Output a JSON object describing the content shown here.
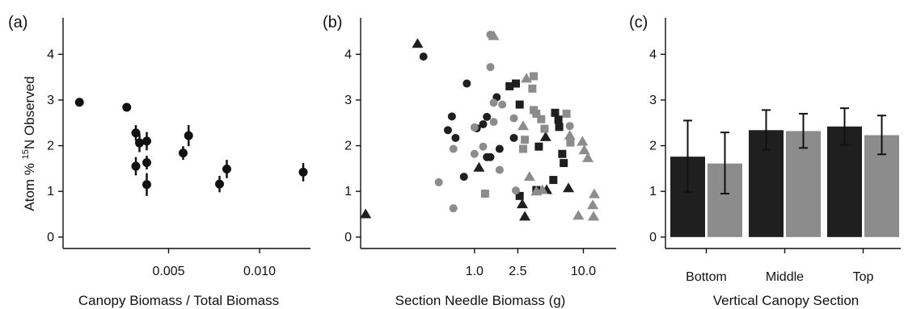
{
  "colors": {
    "dark": "#1f1f1f",
    "gray": "#8c8c8c",
    "ink": "#111111"
  },
  "ylabel_parts": {
    "pre": "Atom % ",
    "sup": "15",
    "post": "N Observed"
  },
  "chart_data": [
    {
      "type": "scatter",
      "panel_label": "(a)",
      "xlabel": "Canopy Biomass / Total Biomass",
      "ylabel": "Atom % 15N Observed",
      "xlim": [
        -0.0008,
        0.0128
      ],
      "ylim": [
        -0.25,
        4.8
      ],
      "x_ticks": [
        {
          "value": 0.005,
          "label": "0.005"
        },
        {
          "value": 0.01,
          "label": "0.010"
        }
      ],
      "y_ticks": [
        {
          "value": 0,
          "label": "0"
        },
        {
          "value": 1,
          "label": "1"
        },
        {
          "value": 2,
          "label": "2"
        },
        {
          "value": 3,
          "label": "3"
        },
        {
          "value": 4,
          "label": "4"
        }
      ],
      "points": [
        {
          "x": 0.0001,
          "y": 2.95,
          "err": 0
        },
        {
          "x": 0.0027,
          "y": 2.84,
          "err": 0
        },
        {
          "x": 0.0032,
          "y": 2.28,
          "err": 0.17
        },
        {
          "x": 0.0034,
          "y": 2.06,
          "err": 0.2
        },
        {
          "x": 0.0032,
          "y": 1.55,
          "err": 0.2
        },
        {
          "x": 0.0038,
          "y": 2.1,
          "err": 0.2
        },
        {
          "x": 0.0038,
          "y": 1.63,
          "err": 0.15
        },
        {
          "x": 0.0038,
          "y": 1.15,
          "err": 0.25
        },
        {
          "x": 0.0058,
          "y": 1.84,
          "err": 0.15
        },
        {
          "x": 0.0061,
          "y": 2.22,
          "err": 0.23
        },
        {
          "x": 0.0078,
          "y": 1.16,
          "err": 0.18
        },
        {
          "x": 0.0082,
          "y": 1.49,
          "err": 0.2
        },
        {
          "x": 0.0124,
          "y": 1.42,
          "err": 0.2
        }
      ]
    },
    {
      "type": "scatter",
      "panel_label": "(b)",
      "xlabel": "Section Needle Biomass (g)",
      "x_scale": "log",
      "xlim": [
        0.09,
        20
      ],
      "ylim": [
        -0.25,
        4.8
      ],
      "x_ticks": [
        {
          "value": 1.0,
          "label": "1.0"
        },
        {
          "value": 2.5,
          "label": "2.5"
        },
        {
          "value": 10.0,
          "label": "10.0"
        }
      ],
      "y_ticks": [
        {
          "value": 0,
          "label": "0"
        },
        {
          "value": 1,
          "label": "1"
        },
        {
          "value": 2,
          "label": "2"
        },
        {
          "value": 3,
          "label": "3"
        },
        {
          "value": 4,
          "label": "4"
        }
      ],
      "points": [
        {
          "x": 0.3,
          "y": 4.23,
          "shape": "triangle",
          "color": "dark"
        },
        {
          "x": 0.34,
          "y": 3.95,
          "shape": "circle",
          "color": "dark"
        },
        {
          "x": 0.1,
          "y": 0.5,
          "shape": "triangle",
          "color": "dark"
        },
        {
          "x": 0.85,
          "y": 3.36,
          "shape": "circle",
          "color": "dark"
        },
        {
          "x": 0.62,
          "y": 2.64,
          "shape": "circle",
          "color": "dark"
        },
        {
          "x": 0.57,
          "y": 2.34,
          "shape": "circle",
          "color": "dark"
        },
        {
          "x": 0.67,
          "y": 2.17,
          "shape": "circle",
          "color": "dark"
        },
        {
          "x": 0.8,
          "y": 1.32,
          "shape": "circle",
          "color": "dark"
        },
        {
          "x": 1.05,
          "y": 2.38,
          "shape": "circle",
          "color": "dark"
        },
        {
          "x": 1.2,
          "y": 2.47,
          "shape": "circle",
          "color": "dark"
        },
        {
          "x": 1.3,
          "y": 2.63,
          "shape": "circle",
          "color": "dark"
        },
        {
          "x": 1.3,
          "y": 1.75,
          "shape": "circle",
          "color": "dark"
        },
        {
          "x": 1.1,
          "y": 1.52,
          "shape": "triangle",
          "color": "dark"
        },
        {
          "x": 1.4,
          "y": 1.75,
          "shape": "circle",
          "color": "dark"
        },
        {
          "x": 1.6,
          "y": 3.06,
          "shape": "circle",
          "color": "dark"
        },
        {
          "x": 1.7,
          "y": 1.93,
          "shape": "circle",
          "color": "dark"
        },
        {
          "x": 2.3,
          "y": 2.17,
          "shape": "circle",
          "color": "dark"
        },
        {
          "x": 2.1,
          "y": 3.3,
          "shape": "square",
          "color": "dark"
        },
        {
          "x": 2.4,
          "y": 3.36,
          "shape": "square",
          "color": "dark"
        },
        {
          "x": 2.6,
          "y": 2.9,
          "shape": "square",
          "color": "dark"
        },
        {
          "x": 2.6,
          "y": 0.9,
          "shape": "square",
          "color": "dark"
        },
        {
          "x": 2.75,
          "y": 0.72,
          "shape": "triangle",
          "color": "dark"
        },
        {
          "x": 2.9,
          "y": 0.45,
          "shape": "triangle",
          "color": "dark"
        },
        {
          "x": 3.7,
          "y": 1.03,
          "shape": "square",
          "color": "dark"
        },
        {
          "x": 3.9,
          "y": 1.98,
          "shape": "square",
          "color": "dark"
        },
        {
          "x": 4.5,
          "y": 2.19,
          "shape": "triangle",
          "color": "dark"
        },
        {
          "x": 4.6,
          "y": 1.03,
          "shape": "triangle",
          "color": "dark"
        },
        {
          "x": 5.5,
          "y": 2.72,
          "shape": "square",
          "color": "dark"
        },
        {
          "x": 5.9,
          "y": 2.57,
          "shape": "square",
          "color": "dark"
        },
        {
          "x": 6.0,
          "y": 2.41,
          "shape": "square",
          "color": "dark"
        },
        {
          "x": 6.4,
          "y": 1.82,
          "shape": "square",
          "color": "dark"
        },
        {
          "x": 6.6,
          "y": 1.62,
          "shape": "square",
          "color": "dark"
        },
        {
          "x": 5.3,
          "y": 1.25,
          "shape": "square",
          "color": "dark"
        },
        {
          "x": 7.3,
          "y": 1.07,
          "shape": "triangle",
          "color": "dark"
        },
        {
          "x": 1.4,
          "y": 4.43,
          "shape": "circle",
          "color": "gray"
        },
        {
          "x": 1.5,
          "y": 4.4,
          "shape": "triangle",
          "color": "gray"
        },
        {
          "x": 1.4,
          "y": 3.72,
          "shape": "circle",
          "color": "gray"
        },
        {
          "x": 0.47,
          "y": 1.2,
          "shape": "circle",
          "color": "gray"
        },
        {
          "x": 0.64,
          "y": 1.93,
          "shape": "circle",
          "color": "gray"
        },
        {
          "x": 0.64,
          "y": 0.63,
          "shape": "circle",
          "color": "gray"
        },
        {
          "x": 1.0,
          "y": 2.4,
          "shape": "circle",
          "color": "gray"
        },
        {
          "x": 1.0,
          "y": 1.82,
          "shape": "circle",
          "color": "gray"
        },
        {
          "x": 1.2,
          "y": 1.98,
          "shape": "circle",
          "color": "gray"
        },
        {
          "x": 1.25,
          "y": 0.95,
          "shape": "square",
          "color": "gray"
        },
        {
          "x": 1.5,
          "y": 2.94,
          "shape": "circle",
          "color": "gray"
        },
        {
          "x": 1.5,
          "y": 2.52,
          "shape": "circle",
          "color": "gray"
        },
        {
          "x": 1.7,
          "y": 1.47,
          "shape": "circle",
          "color": "gray"
        },
        {
          "x": 1.8,
          "y": 2.9,
          "shape": "circle",
          "color": "gray"
        },
        {
          "x": 2.4,
          "y": 1.02,
          "shape": "circle",
          "color": "gray"
        },
        {
          "x": 2.3,
          "y": 2.6,
          "shape": "circle",
          "color": "gray"
        },
        {
          "x": 3.0,
          "y": 3.47,
          "shape": "triangle",
          "color": "gray"
        },
        {
          "x": 3.5,
          "y": 3.52,
          "shape": "square",
          "color": "gray"
        },
        {
          "x": 3.4,
          "y": 3.25,
          "shape": "square",
          "color": "gray"
        },
        {
          "x": 3.5,
          "y": 2.78,
          "shape": "square",
          "color": "gray"
        },
        {
          "x": 3.7,
          "y": 2.7,
          "shape": "square",
          "color": "gray"
        },
        {
          "x": 2.8,
          "y": 2.43,
          "shape": "triangle",
          "color": "gray"
        },
        {
          "x": 2.9,
          "y": 2.13,
          "shape": "square",
          "color": "gray"
        },
        {
          "x": 2.8,
          "y": 1.93,
          "shape": "square",
          "color": "gray"
        },
        {
          "x": 3.2,
          "y": 1.32,
          "shape": "triangle",
          "color": "gray"
        },
        {
          "x": 3.7,
          "y": 1.0,
          "shape": "triangle",
          "color": "gray"
        },
        {
          "x": 4.2,
          "y": 1.03,
          "shape": "triangle",
          "color": "gray"
        },
        {
          "x": 4.4,
          "y": 2.37,
          "shape": "square",
          "color": "gray"
        },
        {
          "x": 4.1,
          "y": 2.58,
          "shape": "square",
          "color": "gray"
        },
        {
          "x": 7.0,
          "y": 2.7,
          "shape": "square",
          "color": "gray"
        },
        {
          "x": 7.5,
          "y": 2.22,
          "shape": "triangle",
          "color": "gray"
        },
        {
          "x": 7.6,
          "y": 2.07,
          "shape": "square",
          "color": "gray"
        },
        {
          "x": 7.5,
          "y": 2.43,
          "shape": "circle",
          "color": "gray"
        },
        {
          "x": 9.8,
          "y": 2.09,
          "shape": "triangle",
          "color": "gray"
        },
        {
          "x": 10.2,
          "y": 1.9,
          "shape": "triangle",
          "color": "gray"
        },
        {
          "x": 11.0,
          "y": 1.73,
          "shape": "triangle",
          "color": "gray"
        },
        {
          "x": 9.0,
          "y": 0.47,
          "shape": "triangle",
          "color": "gray"
        },
        {
          "x": 12.6,
          "y": 0.94,
          "shape": "triangle",
          "color": "gray"
        },
        {
          "x": 12.2,
          "y": 0.7,
          "shape": "triangle",
          "color": "gray"
        },
        {
          "x": 12.4,
          "y": 0.45,
          "shape": "triangle",
          "color": "gray"
        }
      ]
    },
    {
      "type": "bar",
      "panel_label": "(c)",
      "xlabel": "Vertical Canopy Section",
      "categories": [
        "Bottom",
        "Middle",
        "Top"
      ],
      "ylim": [
        -0.25,
        4.8
      ],
      "y_ticks": [
        {
          "value": 0,
          "label": "0"
        },
        {
          "value": 1,
          "label": "1"
        },
        {
          "value": 2,
          "label": "2"
        },
        {
          "value": 3,
          "label": "3"
        },
        {
          "value": 4,
          "label": "4"
        }
      ],
      "series": [
        {
          "color": "dark",
          "values": [
            1.76,
            2.34,
            2.42
          ],
          "err_low": [
            0.98,
            1.91,
            2.02
          ],
          "err_high": [
            2.55,
            2.78,
            2.82
          ]
        },
        {
          "color": "gray",
          "values": [
            1.61,
            2.32,
            2.23
          ],
          "err_low": [
            0.95,
            1.95,
            1.81
          ],
          "err_high": [
            2.29,
            2.7,
            2.66
          ]
        }
      ]
    }
  ]
}
